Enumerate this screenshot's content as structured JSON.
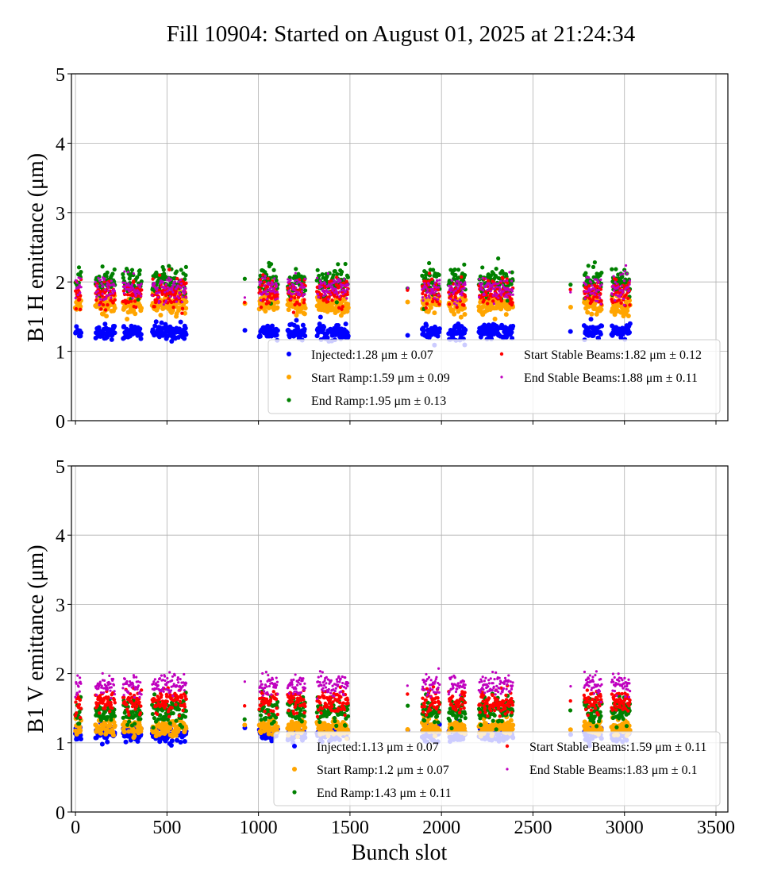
{
  "title": "Fill 10904: Started on August 01, 2025 at 21:24:34",
  "chart_data": [
    {
      "type": "scatter",
      "ylabel": "B1 H emittance (μm)",
      "xlabel": "",
      "xlim": [
        -22,
        3565
      ],
      "ylim": [
        0,
        5
      ],
      "xticks": [
        "0",
        "500",
        "1000",
        "1500",
        "2000",
        "2500",
        "3000",
        "3500"
      ],
      "yticks": [
        "0",
        "1",
        "2",
        "3",
        "4",
        "5"
      ],
      "grid": true,
      "legend_position": "lower-right",
      "series": [
        {
          "name": "Injected",
          "legend": "Injected:1.28 μm ± 0.07",
          "mean": 1.28,
          "std": 0.07,
          "color": "#0000ff"
        },
        {
          "name": "Start Ramp",
          "legend": "Start Ramp:1.59 μm ± 0.09",
          "mean": 1.59,
          "std": 0.09,
          "color": "#ffa500"
        },
        {
          "name": "End Ramp",
          "legend": "End Ramp:1.95 μm ± 0.13",
          "mean": 1.95,
          "std": 0.13,
          "color": "#008000"
        },
        {
          "name": "Start Stable Beams",
          "legend": "Start Stable Beams:1.82 μm ± 0.12",
          "mean": 1.82,
          "std": 0.12,
          "color": "#ff0000"
        },
        {
          "name": "End Stable Beams",
          "legend": "End Stable Beams:1.88 μm ± 0.11",
          "mean": 1.88,
          "std": 0.11,
          "color": "#bf00bf"
        }
      ]
    },
    {
      "type": "scatter",
      "ylabel": "B1 V emittance (μm)",
      "xlabel": "Bunch slot",
      "xlim": [
        -22,
        3565
      ],
      "ylim": [
        0,
        5
      ],
      "xticks": [
        "0",
        "500",
        "1000",
        "1500",
        "2000",
        "2500",
        "3000",
        "3500"
      ],
      "yticks": [
        "0",
        "1",
        "2",
        "3",
        "4",
        "5"
      ],
      "grid": true,
      "legend_position": "lower-right",
      "series": [
        {
          "name": "Injected",
          "legend": "Injected:1.13 μm ± 0.07",
          "mean": 1.13,
          "std": 0.07,
          "color": "#0000ff"
        },
        {
          "name": "Start Ramp",
          "legend": "Start Ramp:1.2 μm ± 0.07",
          "mean": 1.2,
          "std": 0.07,
          "color": "#ffa500"
        },
        {
          "name": "End Ramp",
          "legend": "End Ramp:1.43 μm ± 0.11",
          "mean": 1.43,
          "std": 0.11,
          "color": "#008000"
        },
        {
          "name": "Start Stable Beams",
          "legend": "Start Stable Beams:1.59 μm ± 0.11",
          "mean": 1.59,
          "std": 0.11,
          "color": "#ff0000"
        },
        {
          "name": "End Stable Beams",
          "legend": "End Stable Beams:1.83 μm ± 0.1",
          "mean": 1.83,
          "std": 0.1,
          "color": "#bf00bf"
        }
      ]
    }
  ],
  "trains": [
    [
      0,
      30
    ],
    [
      110,
      215
    ],
    [
      260,
      360
    ],
    [
      420,
      605
    ],
    [
      925,
      925
    ],
    [
      1005,
      1105
    ],
    [
      1160,
      1255
    ],
    [
      1320,
      1490
    ],
    [
      1815,
      1815
    ],
    [
      1895,
      1990
    ],
    [
      2040,
      2130
    ],
    [
      2205,
      2390
    ],
    [
      2705,
      2705
    ],
    [
      2780,
      2875
    ],
    [
      2930,
      3030
    ]
  ]
}
